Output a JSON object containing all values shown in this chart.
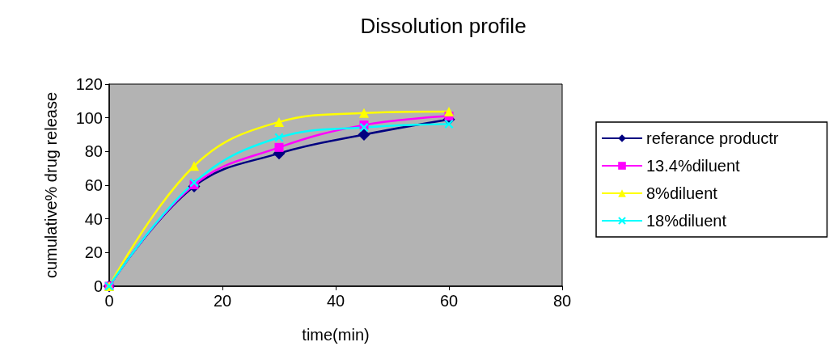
{
  "chart_data": {
    "type": "line",
    "title": "Dissolution profile",
    "xlabel": "time(min)",
    "ylabel": "cumulative% drug release",
    "x": [
      0,
      15,
      30,
      45,
      60
    ],
    "series": [
      {
        "name": "referance productr",
        "color": "#000080",
        "marker": "diamond",
        "values": [
          0,
          59.3,
          78.9,
          90,
          99
        ]
      },
      {
        "name": "13.4%diluent",
        "color": "#ff00ff",
        "marker": "square",
        "values": [
          0,
          60.2,
          82.4,
          95.7,
          101
        ]
      },
      {
        "name": "8%diluent",
        "color": "#ffff00",
        "marker": "triangle",
        "values": [
          0,
          71.4,
          97.5,
          102.8,
          103.7
        ]
      },
      {
        "name": "18%diluent",
        "color": "#00ffff",
        "marker": "cross",
        "values": [
          0,
          61.5,
          88.3,
          94.3,
          96.3
        ]
      }
    ],
    "xlim": [
      0,
      80
    ],
    "xticks": [
      0,
      20,
      40,
      60,
      80
    ],
    "ylim": [
      0,
      120
    ],
    "yticks": [
      0,
      20,
      40,
      60,
      80,
      100,
      120
    ],
    "grid": false,
    "legend": "right",
    "line_style": "solid"
  }
}
